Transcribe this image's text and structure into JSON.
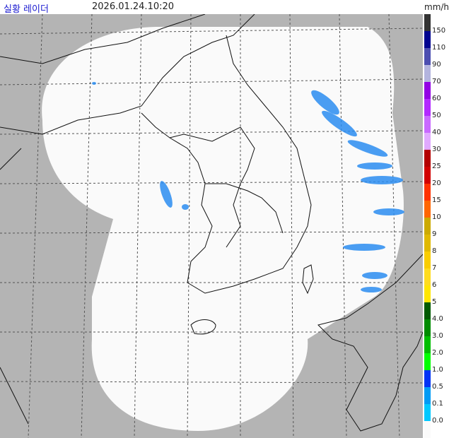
{
  "header": {
    "title": "실황 레이더",
    "timestamp": "2026.01.24.10:20"
  },
  "legend": {
    "unit": "mm/h",
    "top_color": "#333333",
    "items": [
      {
        "label": "150",
        "color": "#000390"
      },
      {
        "label": "110",
        "color": "#4c4eb1"
      },
      {
        "label": "90",
        "color": "#b3b4de"
      },
      {
        "label": "70",
        "color": "#9300e4"
      },
      {
        "label": "60",
        "color": "#b329ff"
      },
      {
        "label": "50",
        "color": "#c969ff"
      },
      {
        "label": "40",
        "color": "#e0a9ff"
      },
      {
        "label": "30",
        "color": "#b40000"
      },
      {
        "label": "25",
        "color": "#d20000"
      },
      {
        "label": "20",
        "color": "#ff3200"
      },
      {
        "label": "15",
        "color": "#ff6600"
      },
      {
        "label": "10",
        "color": "#ccaa00"
      },
      {
        "label": "9",
        "color": "#e0b900"
      },
      {
        "label": "8",
        "color": "#f9cd00"
      },
      {
        "label": "7",
        "color": "#ffdc1f"
      },
      {
        "label": "6",
        "color": "#ffe600"
      },
      {
        "label": "5",
        "color": "#005a00"
      },
      {
        "label": "4.0",
        "color": "#008c00"
      },
      {
        "label": "3.0",
        "color": "#00be00"
      },
      {
        "label": "2.0",
        "color": "#00ff00"
      },
      {
        "label": "1.0",
        "color": "#0033f5"
      },
      {
        "label": "0.5",
        "color": "#009bf5"
      },
      {
        "label": "0.1",
        "color": "#00c8ff"
      },
      {
        "label": "0.0",
        "color": "#fafafa"
      }
    ]
  }
}
